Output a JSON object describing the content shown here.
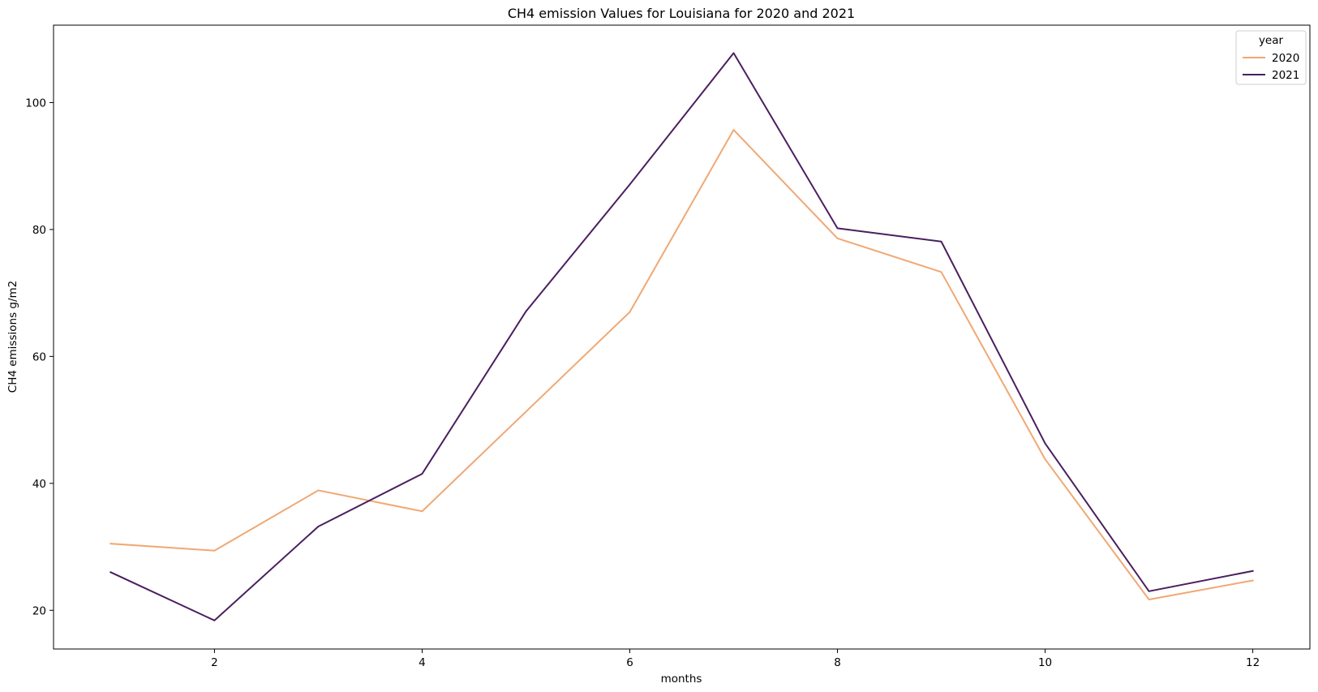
{
  "chart_data": {
    "type": "line",
    "title": "CH4 emission Values for Louisiana for 2020 and 2021",
    "xlabel": "months",
    "ylabel": "CH4 emissions g/m2",
    "x": [
      1,
      2,
      3,
      4,
      5,
      6,
      7,
      8,
      9,
      10,
      11,
      12
    ],
    "xlim": [
      0.45,
      12.55
    ],
    "ylim": [
      13.9,
      112.2
    ],
    "xticks": [
      2,
      4,
      6,
      8,
      10,
      12
    ],
    "yticks": [
      20,
      40,
      60,
      80,
      100
    ],
    "grid": false,
    "legend": {
      "title": "year",
      "placement": "top-right"
    },
    "series": [
      {
        "name": "2020",
        "color": "#f0a873",
        "values": [
          30.5,
          29.4,
          38.9,
          35.6,
          51.3,
          67.0,
          95.7,
          78.6,
          73.3,
          43.8,
          21.7,
          24.7
        ]
      },
      {
        "name": "2021",
        "color": "#4a1f5e",
        "values": [
          26.0,
          18.4,
          33.2,
          41.5,
          67.1,
          87.1,
          107.8,
          80.2,
          78.1,
          46.3,
          23.0,
          26.2
        ]
      }
    ]
  }
}
